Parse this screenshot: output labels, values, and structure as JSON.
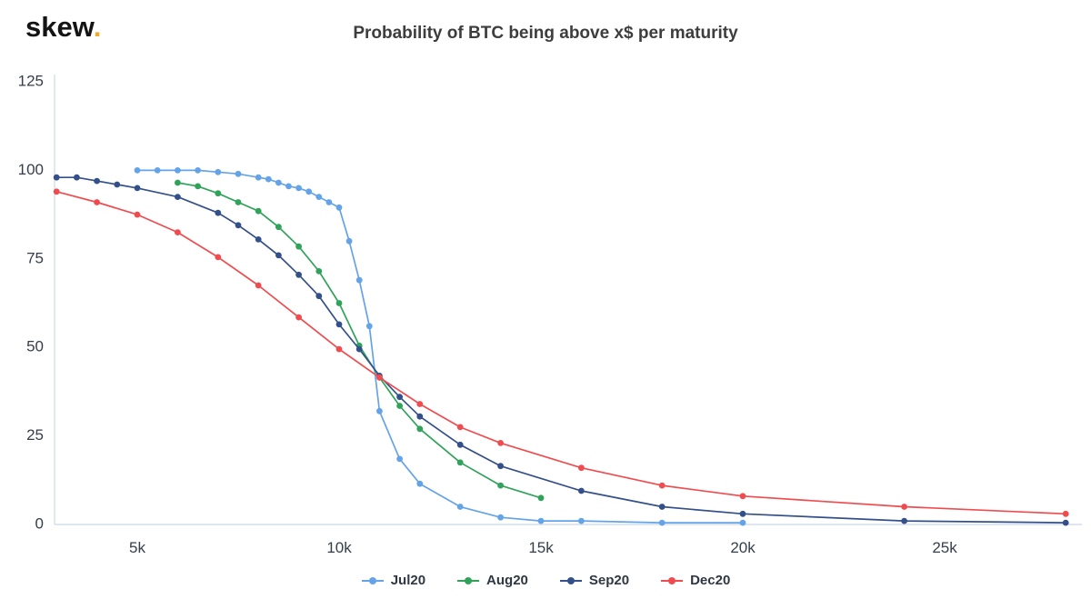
{
  "header": {
    "logo_text": "skew",
    "logo_dot": ".",
    "title": "Probability of BTC being above x$ per maturity"
  },
  "colors": {
    "background": "#ffffff",
    "axis": "#ccd8e6",
    "tick_text": "#343f4b",
    "title_text": "#3d3d3d",
    "logo_text": "#141414",
    "logo_dot": "#f7a823",
    "jul20": "#64a3e8",
    "aug20": "#30a35a",
    "sep20": "#34508a",
    "dec20": "#f04c4f"
  },
  "chart_data": {
    "type": "line",
    "title": "Probability of BTC being above x$ per maturity",
    "xlabel": "",
    "ylabel": "",
    "xlim": [
      2950,
      28400
    ],
    "ylim": [
      0,
      125
    ],
    "grid": false,
    "legend_position": "bottom",
    "marker": "circle",
    "x_ticks": [
      {
        "value": 5000,
        "label": "5k"
      },
      {
        "value": 10000,
        "label": "10k"
      },
      {
        "value": 15000,
        "label": "15k"
      },
      {
        "value": 20000,
        "label": "20k"
      },
      {
        "value": 25000,
        "label": "25k"
      }
    ],
    "y_ticks": [
      {
        "value": 0,
        "label": "0"
      },
      {
        "value": 25,
        "label": "25"
      },
      {
        "value": 50,
        "label": "50"
      },
      {
        "value": 75,
        "label": "75"
      },
      {
        "value": 100,
        "label": "100"
      },
      {
        "value": 125,
        "label": "125"
      }
    ],
    "series": [
      {
        "name": "Jul20",
        "color": "#64a3e8",
        "x": [
          5000,
          5500,
          6000,
          6500,
          7000,
          7500,
          8000,
          8250,
          8500,
          8750,
          9000,
          9250,
          9500,
          9750,
          10000,
          10250,
          10500,
          10750,
          11000,
          11500,
          12000,
          13000,
          14000,
          15000,
          16000,
          18000,
          20000
        ],
        "y": [
          100,
          100,
          100,
          100,
          99.5,
          99,
          98,
          97.5,
          96.5,
          95.5,
          95,
          94,
          92.5,
          91,
          89.5,
          80,
          69,
          56,
          32,
          18.5,
          11.5,
          5,
          2,
          1,
          1,
          0.5,
          0.5
        ]
      },
      {
        "name": "Aug20",
        "color": "#30a35a",
        "x": [
          6000,
          6500,
          7000,
          7500,
          8000,
          8500,
          9000,
          9500,
          10000,
          10500,
          11000,
          11500,
          12000,
          13000,
          14000,
          15000
        ],
        "y": [
          96.5,
          95.5,
          93.5,
          91,
          88.5,
          84,
          78.5,
          71.5,
          62.5,
          50.5,
          41.5,
          33.5,
          27,
          17.5,
          11,
          7.5
        ]
      },
      {
        "name": "Sep20",
        "color": "#34508a",
        "x": [
          3000,
          3500,
          4000,
          4500,
          5000,
          6000,
          7000,
          7500,
          8000,
          8500,
          9000,
          9500,
          10000,
          10500,
          11000,
          11500,
          12000,
          13000,
          14000,
          16000,
          18000,
          20000,
          24000,
          28000
        ],
        "y": [
          98,
          98,
          97,
          96,
          95,
          92.5,
          88,
          84.5,
          80.5,
          76,
          70.5,
          64.5,
          56.5,
          49.5,
          42,
          36,
          30.5,
          22.5,
          16.5,
          9.5,
          5,
          3,
          1,
          0.5
        ]
      },
      {
        "name": "Dec20",
        "color": "#f04c4f",
        "x": [
          3000,
          4000,
          5000,
          6000,
          7000,
          8000,
          9000,
          10000,
          11000,
          12000,
          13000,
          14000,
          16000,
          18000,
          20000,
          24000,
          28000
        ],
        "y": [
          94,
          91,
          87.5,
          82.5,
          75.5,
          67.5,
          58.5,
          49.5,
          41.5,
          34,
          27.5,
          23,
          16,
          11,
          8,
          5,
          3
        ]
      }
    ]
  }
}
